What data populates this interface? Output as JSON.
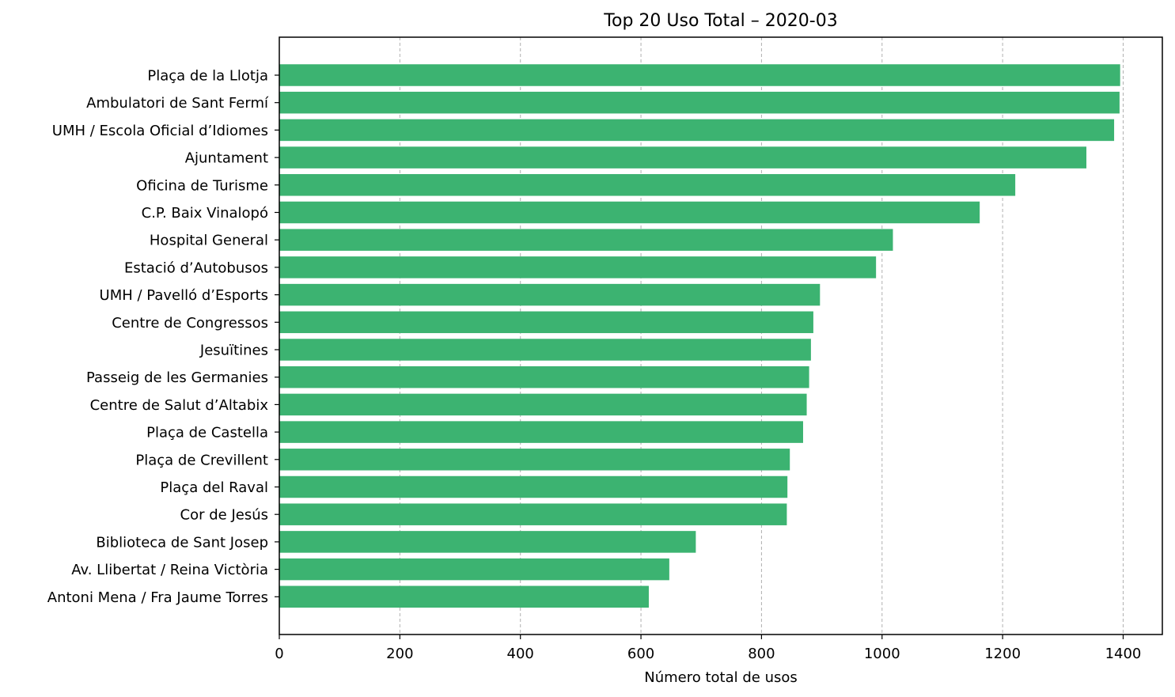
{
  "chart_data": {
    "type": "bar",
    "orientation": "horizontal",
    "title": "Top 20 Uso Total – 2020-03",
    "xlabel": "Número total de usos",
    "ylabel": "",
    "xlim": [
      0,
      1465
    ],
    "xticks": [
      0,
      200,
      400,
      600,
      800,
      1000,
      1200,
      1400
    ],
    "grid": "x-dashed",
    "bar_color": "#3CB371",
    "categories": [
      "Plaça de la Llotja",
      "Ambulatori de Sant Fermí",
      "UMH / Escola Oficial d’Idiomes",
      "Ajuntament",
      "Oficina de Turisme",
      "C.P. Baix Vinalopó",
      "Hospital General",
      "Estació d’Autobusos",
      "UMH / Pavelló d’Esports",
      "Centre de Congressos",
      "Jesuïtines",
      "Passeig de les Germanies",
      "Centre de Salut d’Altabix",
      "Plaça de Castella",
      "Plaça de Crevillent",
      "Plaça del Raval",
      "Cor de Jesús",
      "Biblioteca de Sant Josep",
      "Av. Llibertat / Reina Victòria",
      "Antoni Mena / Fra Jaume Torres"
    ],
    "values": [
      1395,
      1394,
      1385,
      1339,
      1221,
      1162,
      1018,
      990,
      897,
      886,
      882,
      879,
      875,
      869,
      847,
      843,
      842,
      691,
      647,
      613
    ]
  }
}
